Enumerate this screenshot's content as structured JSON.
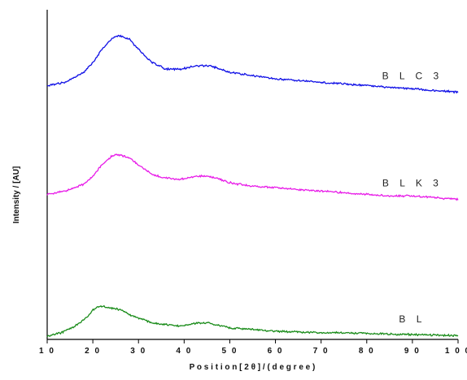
{
  "chart_data": {
    "type": "line",
    "xlabel": "P o s i t i o n   [ 2 θ ]   / ( d e g r e e )",
    "ylabel": "Intensity / [AU]",
    "xlim": [
      10,
      100
    ],
    "xticks": [
      "1 0",
      "2 0",
      "3 0",
      "4 0",
      "5 0",
      "6 0",
      "7 0",
      "8 0",
      "9 0",
      "1 0 0"
    ],
    "ylim": [
      0,
      100
    ],
    "yticks": [],
    "grid": false,
    "legend": "none",
    "series": [
      {
        "name": "B L C 3",
        "color": "#1010e6",
        "x": [
          10,
          14,
          18,
          20,
          22,
          24,
          25,
          26,
          28,
          30,
          33,
          36,
          39,
          41,
          43,
          45,
          47,
          50,
          55,
          60,
          65,
          70,
          75,
          80,
          85,
          90,
          95,
          100
        ],
        "y": [
          77,
          78,
          81,
          84,
          88,
          91,
          92,
          92,
          91,
          88,
          84,
          82,
          82,
          82.5,
          83,
          83,
          82.5,
          81,
          80,
          79,
          78.5,
          78,
          77.5,
          77,
          76.5,
          76,
          75.5,
          75
        ]
      },
      {
        "name": "B L K 3",
        "color": "#e81ce8",
        "x": [
          10,
          14,
          18,
          20,
          22,
          24,
          25,
          26,
          28,
          30,
          33,
          36,
          39,
          41,
          43,
          45,
          47,
          50,
          55,
          60,
          65,
          70,
          75,
          80,
          85,
          90,
          95,
          100
        ],
        "y": [
          44,
          45,
          47,
          49.5,
          53,
          55.5,
          56,
          56,
          55,
          53,
          50,
          49,
          48.5,
          49,
          49.5,
          49.5,
          49,
          47.5,
          46.5,
          46,
          45.5,
          45,
          44.5,
          44,
          43.5,
          43.5,
          43,
          42.5
        ]
      },
      {
        "name": "B L",
        "color": "#1a8c1a",
        "x": [
          10,
          13,
          16,
          19,
          20,
          21,
          22,
          24,
          26,
          28,
          30,
          33,
          36,
          39,
          41,
          43,
          45,
          47,
          50,
          55,
          60,
          65,
          70,
          75,
          80,
          85,
          90,
          95,
          100
        ],
        "y": [
          1,
          2,
          4,
          7,
          9,
          10,
          10,
          9.5,
          9,
          7.5,
          6.5,
          5,
          4.5,
          4,
          4.5,
          5,
          5,
          4.5,
          3.5,
          3,
          2.5,
          2.3,
          2,
          2,
          1.8,
          1.6,
          1.5,
          1.3,
          1.2
        ]
      }
    ]
  }
}
